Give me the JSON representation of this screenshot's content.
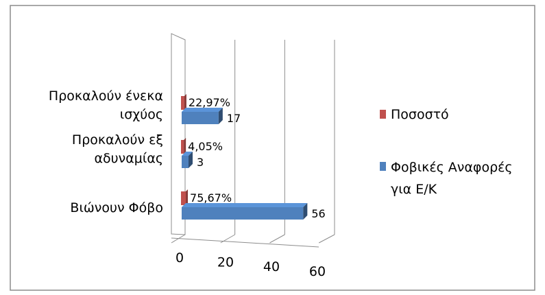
{
  "chart_data": {
    "type": "bar",
    "orientation": "horizontal",
    "style": "3d",
    "categories": [
      "Προκαλούν ένεκα ισχύος",
      "Προκαλούν εξ αδυναμίας",
      "Βιώνουν  Φόβο"
    ],
    "category_lines": [
      [
        "Προκαλούν ένεκα",
        "ισχύος"
      ],
      [
        "Προκαλούν εξ",
        "αδυναμίας"
      ],
      [
        "Βιώνουν  Φόβο"
      ]
    ],
    "series": [
      {
        "name": "Ποσοστό",
        "color": "#C0504D",
        "values": [
          0.2297,
          0.0405,
          0.7567
        ],
        "labels": [
          "22,97%",
          "4,05%",
          "75,67%"
        ]
      },
      {
        "name": "Φοβικές Αναφορές για Ε/Κ",
        "legend_lines": [
          "Φοβικές Αναφορές",
          "για Ε/Κ"
        ],
        "color": "#4F81BD",
        "values": [
          17,
          3,
          56
        ],
        "labels": [
          "17",
          "3",
          "56"
        ]
      }
    ],
    "xlim": [
      0,
      60
    ],
    "ticks": [
      0,
      20,
      40,
      60
    ],
    "tick_labels": [
      "0",
      "20",
      "40",
      "60"
    ],
    "grid": true,
    "legend_position": "right"
  }
}
